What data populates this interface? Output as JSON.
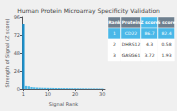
{
  "chart_data": {
    "type": "bar",
    "title": "Human Protein Microarray Specificity Validation",
    "x_label": "Signal Rank",
    "y_label": "Strength of Signal (Z score)",
    "x": [
      1,
      2,
      3,
      4,
      5,
      6,
      7,
      8,
      9,
      10,
      11,
      12,
      13,
      14,
      15,
      16,
      17,
      18,
      19,
      20,
      21,
      22,
      23,
      24,
      25,
      26,
      27,
      28,
      29,
      30
    ],
    "values": [
      86.7,
      4.3,
      3.72,
      2.8,
      2.4,
      2.1,
      1.95,
      1.85,
      1.75,
      1.68,
      1.62,
      1.56,
      1.5,
      1.44,
      1.38,
      1.33,
      1.28,
      1.23,
      1.18,
      1.13,
      1.09,
      1.05,
      1.01,
      0.97,
      0.93,
      0.89,
      0.85,
      0.82,
      0.79,
      0.76
    ],
    "colors": [
      "#1a90cc",
      "#4ab8e8",
      "#4ab8e8",
      "#4ab8e8",
      "#4ab8e8",
      "#4ab8e8",
      "#4ab8e8",
      "#4ab8e8",
      "#4ab8e8",
      "#4ab8e8",
      "#4ab8e8",
      "#4ab8e8",
      "#4ab8e8",
      "#4ab8e8",
      "#4ab8e8",
      "#4ab8e8",
      "#4ab8e8",
      "#4ab8e8",
      "#4ab8e8",
      "#4ab8e8",
      "#4ab8e8",
      "#4ab8e8",
      "#4ab8e8",
      "#4ab8e8",
      "#4ab8e8",
      "#4ab8e8",
      "#4ab8e8",
      "#4ab8e8",
      "#4ab8e8",
      "#4ab8e8"
    ],
    "xlim": [
      0.5,
      31
    ],
    "xticks": [
      1,
      10,
      20,
      30
    ],
    "ylim": [
      0,
      96
    ],
    "yticks": [
      0,
      24,
      48,
      72,
      96
    ],
    "grid": false,
    "table": {
      "headers": [
        "Rank",
        "Protein",
        "Z score",
        "S score"
      ],
      "rows": [
        [
          "1",
          "CD22",
          "86.7",
          "82.4"
        ],
        [
          "2",
          "DHRS12",
          "4.3",
          "0.58"
        ],
        [
          "3",
          "GASG61",
          "3.72",
          "1.93"
        ]
      ]
    }
  }
}
